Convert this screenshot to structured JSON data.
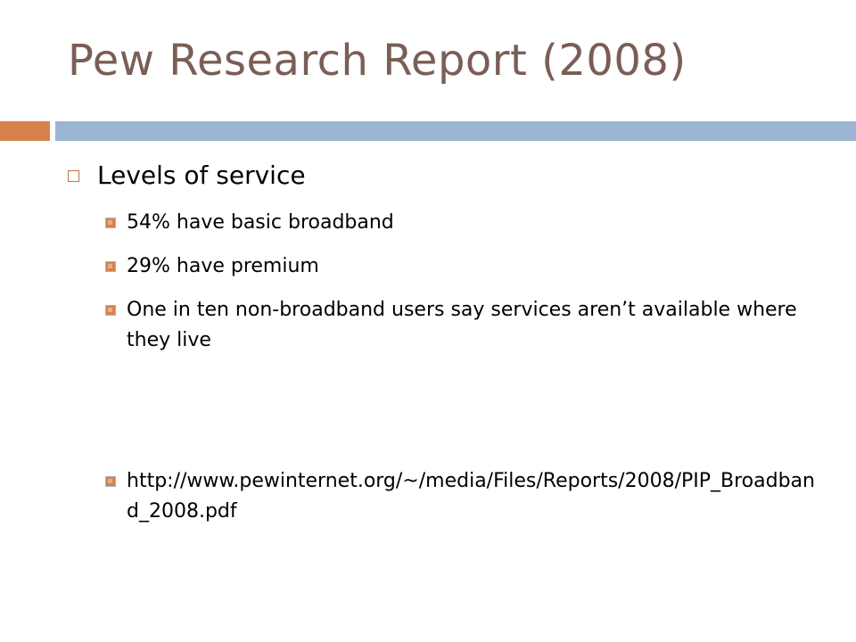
{
  "slide": {
    "title": "Pew Research Report (2008)",
    "level1": {
      "text": "Levels of service"
    },
    "level2": [
      {
        "text": "54% have basic broadband"
      },
      {
        "text": "29% have premium"
      },
      {
        "text": "One in ten non-broadband users say services aren’t available where they live"
      },
      {
        "text": "http://www.pewinternet.org/~/media/Files/Reports/2008/PIP_Broadband_2008.pdf"
      }
    ],
    "colors": {
      "title": "#7a5e55",
      "accent": "#d9814a",
      "rule": "#9bb5d3"
    },
    "icons": {
      "level1_bullet": "hollow-square-icon",
      "level2_bullet": "filled-square-icon"
    }
  }
}
